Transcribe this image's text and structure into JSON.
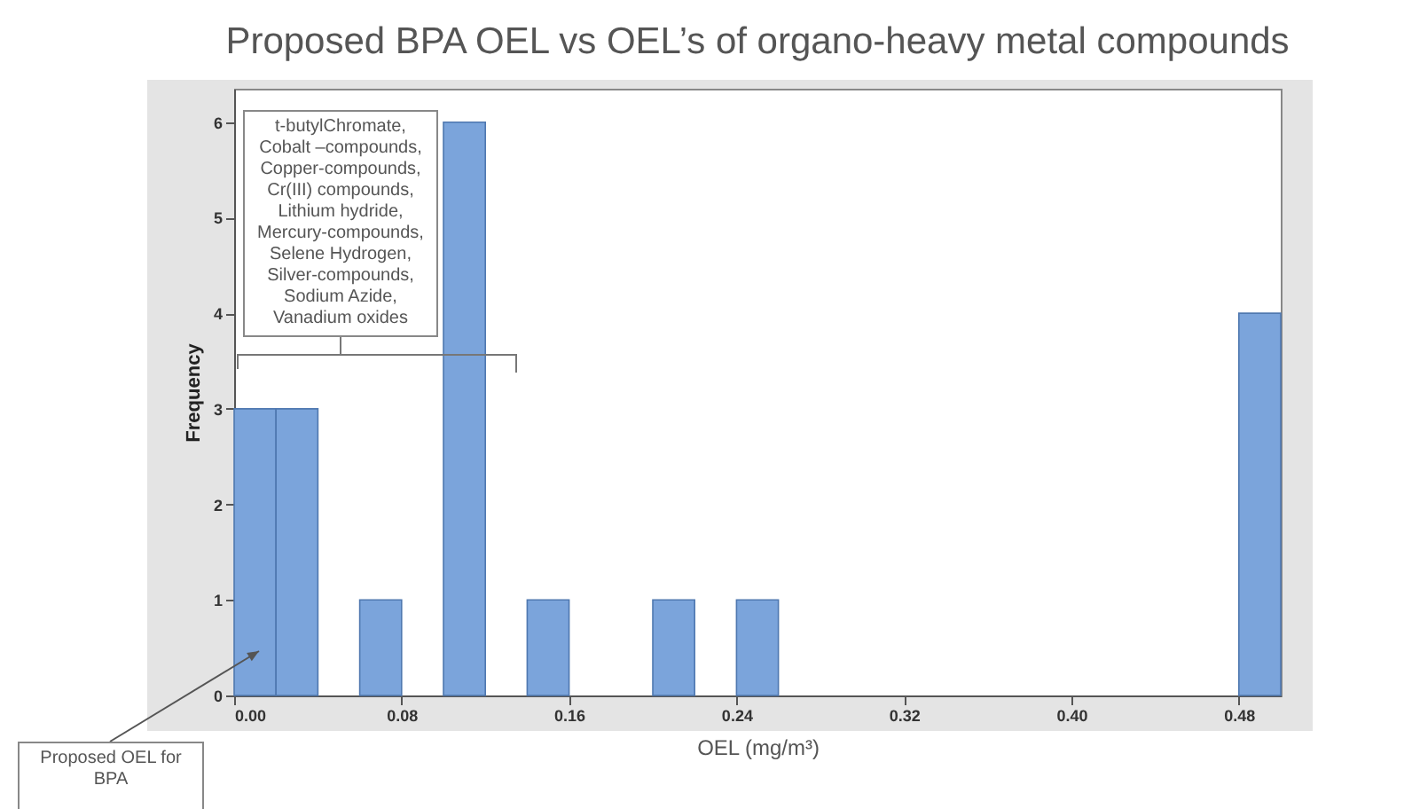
{
  "chart_data": {
    "type": "histogram",
    "title": "Proposed BPA OEL vs OEL’s of organo-heavy metal compounds",
    "xlabel": "OEL (mg/m³)",
    "ylabel": "Frequency",
    "bins": [
      0,
      0.02,
      0.04,
      0.06,
      0.08,
      0.1,
      0.12,
      0.14,
      0.16,
      0.18,
      0.2,
      0.22,
      0.24,
      0.26,
      0.28,
      0.3,
      0.32,
      0.34,
      0.36,
      0.38,
      0.4,
      0.42,
      0.44,
      0.46,
      0.48,
      0.5
    ],
    "values": [
      3,
      3,
      0,
      1,
      0,
      6,
      0,
      1,
      0,
      0,
      1,
      0,
      1,
      0,
      0,
      0,
      0,
      0,
      0,
      0,
      0,
      0,
      0,
      0,
      4
    ],
    "color": "#7ba4db",
    "xlim": [
      0,
      0.5
    ],
    "xticks": [
      {
        "value": 0,
        "label": "0.00"
      },
      0.08,
      0.16,
      0.24,
      0.32,
      {
        "value": 0.4,
        "label": "0.40"
      },
      0.48
    ],
    "ylim": [
      0,
      6.35
    ],
    "yticks": [
      0,
      1,
      2,
      3,
      4,
      5,
      6
    ],
    "annotations": [
      "t-butylChromate, Cobalt –compounds, Copper-compounds, Cr(III) compounds, Lithium hydride, Mercury-compounds, Selene Hydrogen, Silver-compounds, Sodium Azide, Vanadium oxides",
      "Proposed OEL for BPA"
    ]
  }
}
